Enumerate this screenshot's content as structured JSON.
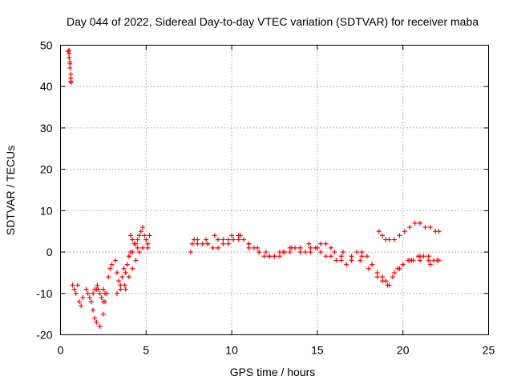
{
  "chart_data": {
    "type": "scatter",
    "title": "Day 044 of 2022, Sidereal Day-to-day VTEC variation (SDTVAR) for receiver maba",
    "xlabel": "GPS time / hours",
    "ylabel": "SDTVAR / TECUs",
    "xlim": [
      0,
      25
    ],
    "ylim": [
      -20,
      50
    ],
    "xticks": [
      "0",
      "5",
      "10",
      "15",
      "20",
      "25"
    ],
    "yticks": [
      "-20",
      "-10",
      "0",
      "10",
      "20",
      "30",
      "40",
      "50"
    ],
    "grid": true,
    "marker": "plus",
    "color": "#ff0000",
    "series": [
      {
        "name": "SDTVAR",
        "x": [
          0.45,
          0.5,
          0.5,
          0.55,
          0.55,
          0.55,
          0.6,
          0.6,
          0.62,
          0.5,
          0.6,
          0.7,
          0.8,
          0.9,
          1.0,
          1.1,
          1.2,
          1.3,
          1.5,
          1.6,
          1.7,
          1.8,
          1.9,
          2.0,
          2.1,
          2.15,
          2.2,
          2.3,
          2.4,
          2.5,
          2.5,
          2.6,
          1.9,
          2.0,
          2.1,
          2.3,
          2.5,
          2.6,
          2.7,
          2.8,
          2.9,
          3.0,
          3.2,
          3.3,
          3.4,
          3.5,
          3.6,
          3.7,
          3.75,
          3.8,
          3.9,
          4.0,
          4.1,
          3.3,
          3.5,
          3.8,
          3.9,
          4.0,
          4.2,
          4.4,
          4.5,
          4.6,
          4.7,
          4.8,
          4.9,
          5.0,
          5.1,
          5.1,
          3.8,
          4.0,
          4.2,
          4.4,
          4.6,
          4.8,
          5.0,
          5.2,
          4.1,
          4.2,
          4.3,
          4.5,
          7.6,
          7.7,
          8.0,
          8.3,
          8.6,
          8.9,
          9.2,
          9.5,
          9.8,
          10.1,
          10.4,
          10.7,
          11.0,
          11.3,
          11.6,
          11.9,
          12.2,
          12.5,
          12.8,
          13.1,
          13.4,
          13.7,
          14.0,
          14.3,
          14.6,
          14.9,
          15.2,
          15.5,
          15.8,
          16.1,
          16.4,
          16.7,
          17.0,
          17.3,
          17.6,
          17.9,
          18.2,
          18.5,
          18.8,
          19.1,
          19.4,
          19.7,
          20.0,
          20.3,
          20.6,
          20.9,
          21.2,
          21.5,
          21.8,
          22.0,
          7.8,
          8.5,
          9.0,
          9.5,
          10.0,
          10.5,
          11.0,
          11.5,
          12.0,
          12.5,
          13.0,
          13.5,
          14.0,
          14.5,
          15.0,
          15.5,
          16.0,
          16.5,
          17.0,
          17.5,
          18.0,
          18.5,
          19.0,
          19.5,
          20.0,
          20.5,
          21.0,
          21.5,
          22.0,
          8.0,
          8.6,
          9.2,
          9.8,
          10.4,
          11.0,
          11.6,
          12.2,
          12.8,
          13.4,
          14.0,
          14.6,
          15.2,
          15.8,
          16.4,
          17.0,
          17.6,
          18.2,
          18.8,
          19.2,
          19.8,
          20.4,
          21.0,
          21.6,
          22.1,
          18.6,
          18.8,
          19.0,
          19.2,
          19.5,
          19.8,
          20.1,
          20.4,
          20.7,
          21.0,
          21.3,
          21.6,
          21.9,
          22.1
        ],
        "y": [
          48.5,
          48,
          47,
          46,
          45.5,
          44.5,
          43,
          42,
          41,
          48.8,
          41.2,
          -8,
          -9,
          -10,
          -8,
          -12,
          -13,
          -11,
          -9,
          -10,
          -11,
          -12,
          -10,
          -9,
          -9,
          -8,
          -9,
          -10,
          -11,
          -12,
          -9,
          -10,
          -14,
          -16,
          -17,
          -18,
          -15,
          -12,
          -10,
          -6,
          -4,
          -3,
          -2,
          -5,
          -7,
          -9,
          -6,
          -4,
          -8,
          -5,
          -3,
          -1,
          0,
          -10,
          -8,
          -5,
          -3,
          -1,
          0,
          2,
          3,
          4,
          5,
          6,
          4,
          3,
          2,
          1,
          -9,
          -6,
          -4,
          -2,
          0,
          1,
          3,
          4,
          4,
          3,
          2,
          1,
          0,
          2,
          3,
          2,
          2,
          1,
          3,
          2,
          3,
          3,
          4,
          3,
          2,
          1,
          0,
          -1,
          -1,
          -1,
          0,
          0,
          1,
          1,
          0,
          0,
          1,
          1,
          2,
          -1,
          -1,
          -2,
          -2,
          -3,
          -1,
          0,
          0,
          -1,
          -3,
          -5,
          -7,
          -8,
          -6,
          -4,
          -3,
          -2,
          -2,
          -1,
          -1,
          -1,
          -2,
          -2,
          3,
          3,
          4,
          3,
          4,
          4,
          2,
          1,
          0,
          -1,
          0,
          1,
          1,
          2,
          1,
          2,
          0,
          0,
          -2,
          -2,
          -4,
          -6,
          -7,
          -5,
          -3,
          -2,
          -1,
          -2,
          -2,
          2,
          2,
          1,
          2,
          3,
          1,
          0,
          -1,
          -1,
          0,
          1,
          0,
          0,
          1,
          -1,
          -2,
          -1,
          -3,
          -6,
          -8,
          -4,
          -2,
          -2,
          -3,
          -2,
          5,
          4,
          3,
          3,
          3,
          4,
          5,
          6,
          7,
          7,
          6,
          6,
          5,
          5
        ]
      }
    ]
  }
}
